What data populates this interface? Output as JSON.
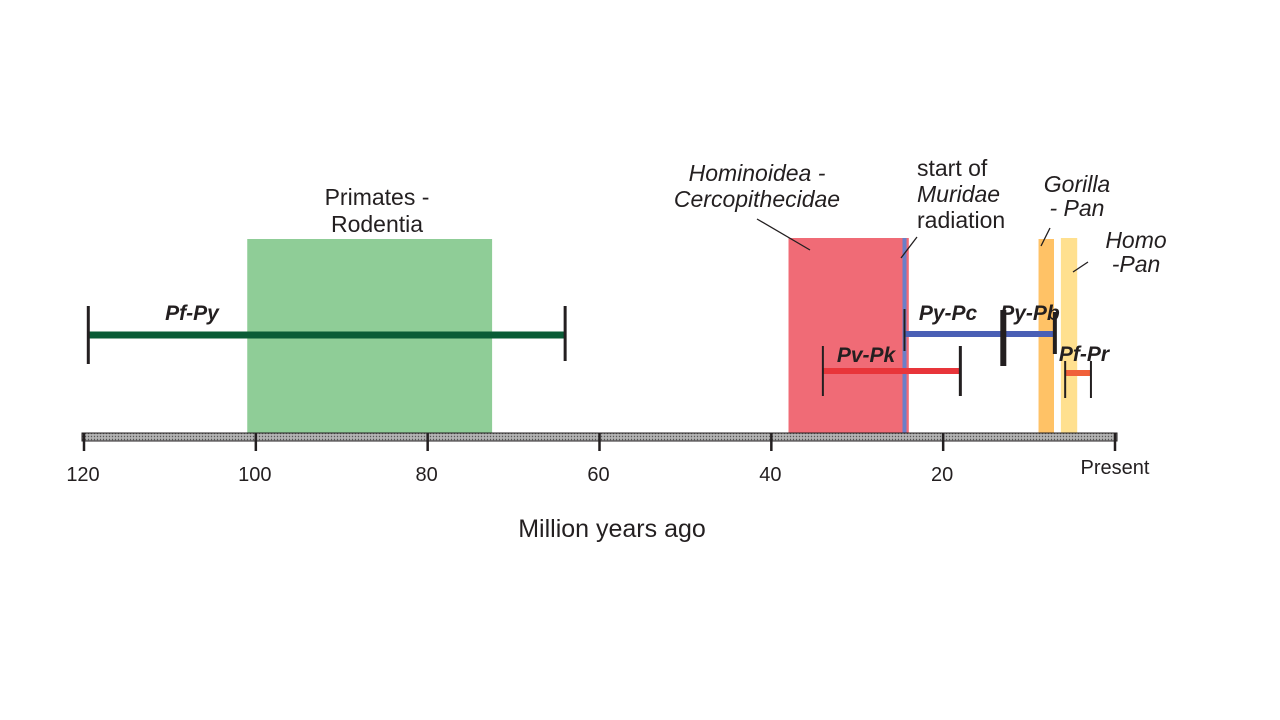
{
  "chart_data": {
    "type": "timeline",
    "xlabel": "Million years ago",
    "xlim": [
      120,
      0
    ],
    "ticks": [
      {
        "value": 120,
        "label": "120"
      },
      {
        "value": 100,
        "label": "100"
      },
      {
        "value": 80,
        "label": "80"
      },
      {
        "value": 60,
        "label": "60"
      },
      {
        "value": 40,
        "label": "40"
      },
      {
        "value": 20,
        "label": "20"
      },
      {
        "value": 0,
        "label": "Present"
      }
    ],
    "bands": [
      {
        "id": "primates-rodentia",
        "label_lines": [
          "Primates -",
          "Rodentia"
        ],
        "italic": false,
        "start": 101,
        "end": 72.5,
        "color": "#8fcd97"
      },
      {
        "id": "hominoidea-cercopithecidae",
        "label_lines": [
          "Hominoidea -",
          "Cercopithecidae"
        ],
        "italic": true,
        "start": 38,
        "end": 24,
        "color": "#f06b76"
      },
      {
        "id": "gorilla-pan",
        "label_lines": [
          "Gorilla",
          "- Pan"
        ],
        "italic": true,
        "start": 8.9,
        "end": 7.1,
        "color": "#ffc266"
      },
      {
        "id": "homo-pan",
        "label_lines": [
          "Homo",
          "-Pan"
        ],
        "italic": true,
        "start": 6.3,
        "end": 4.4,
        "color": "#ffe08f"
      }
    ],
    "markers": [
      {
        "id": "muridae-start",
        "label_lines": [
          "start of",
          "Muridae",
          "radiation"
        ],
        "italic_line": 1,
        "value": 24.5,
        "color": "#6b7fc8"
      }
    ],
    "intervals": [
      {
        "id": "pf-py",
        "label": "Pf-Py",
        "start": 119.5,
        "end": 64,
        "color": "#0a5c36"
      },
      {
        "id": "py-pc",
        "label": "Py-Pc",
        "start": 24.5,
        "end": 7,
        "color": "#4a5fb5"
      },
      {
        "id": "py-pb",
        "label": "Py-Pb",
        "start": 13,
        "end": 7,
        "color": "#4a5fb5"
      },
      {
        "id": "pv-pk",
        "label": "Pv-Pk",
        "start": 34,
        "end": 18,
        "color": "#e8353a"
      },
      {
        "id": "pf-pr",
        "label": "Pf-Pr",
        "start": 5.8,
        "end": 2.8,
        "color": "#f0603a"
      }
    ]
  }
}
